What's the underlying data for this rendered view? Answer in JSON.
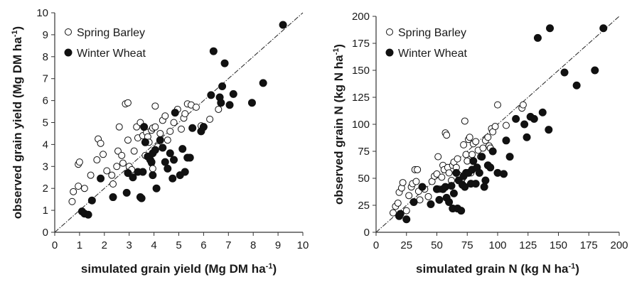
{
  "chart_data": [
    {
      "type": "scatter",
      "xlabel": "simulated grain yield (Mg DM ha",
      "xlabel_sup": "-1",
      "xlabel_end": ")",
      "ylabel": "observed grain yield (Mg DM ha",
      "ylabel_sup": "-1",
      "ylabel_end": ")",
      "xlim": [
        0,
        10
      ],
      "ylim": [
        0,
        10
      ],
      "xticks": [
        0,
        1,
        2,
        3,
        4,
        5,
        6,
        7,
        8,
        9,
        10
      ],
      "yticks": [
        0,
        1,
        2,
        3,
        4,
        5,
        6,
        7,
        8,
        9,
        10
      ],
      "one_to_one_line": true,
      "grid": false,
      "legend_position": "top-left",
      "series": [
        {
          "name": "Spring Barley",
          "marker": "open-circle",
          "points": [
            [
              0.7,
              1.4
            ],
            [
              0.75,
              1.85
            ],
            [
              0.95,
              2.1
            ],
            [
              0.95,
              3.1
            ],
            [
              1.0,
              3.2
            ],
            [
              1.2,
              2.0
            ],
            [
              1.45,
              2.6
            ],
            [
              1.7,
              3.3
            ],
            [
              1.75,
              4.25
            ],
            [
              1.85,
              4.05
            ],
            [
              1.95,
              3.55
            ],
            [
              2.1,
              2.8
            ],
            [
              2.3,
              2.6
            ],
            [
              2.35,
              2.2
            ],
            [
              2.5,
              3.0
            ],
            [
              2.55,
              3.7
            ],
            [
              2.6,
              4.8
            ],
            [
              2.7,
              3.5
            ],
            [
              2.75,
              3.15
            ],
            [
              2.85,
              5.85
            ],
            [
              2.95,
              5.9
            ],
            [
              2.95,
              4.2
            ],
            [
              3.0,
              3.0
            ],
            [
              3.1,
              2.85
            ],
            [
              3.2,
              3.7
            ],
            [
              3.3,
              4.8
            ],
            [
              3.35,
              4.3
            ],
            [
              3.45,
              5.0
            ],
            [
              3.55,
              4.4
            ],
            [
              3.65,
              3.5
            ],
            [
              3.7,
              4.55
            ],
            [
              3.75,
              4.35
            ],
            [
              3.8,
              4.1
            ],
            [
              3.85,
              3.3
            ],
            [
              3.9,
              3.15
            ],
            [
              3.9,
              4.65
            ],
            [
              3.95,
              4.75
            ],
            [
              3.95,
              2.9
            ],
            [
              4.05,
              4.8
            ],
            [
              4.05,
              5.75
            ],
            [
              4.15,
              3.9
            ],
            [
              4.25,
              4.5
            ],
            [
              4.35,
              5.1
            ],
            [
              4.45,
              5.3
            ],
            [
              4.55,
              4.2
            ],
            [
              4.65,
              4.6
            ],
            [
              4.8,
              5.0
            ],
            [
              4.95,
              5.6
            ],
            [
              5.1,
              4.7
            ],
            [
              5.2,
              5.2
            ],
            [
              5.25,
              5.4
            ],
            [
              5.35,
              5.85
            ],
            [
              5.5,
              5.8
            ],
            [
              5.7,
              5.7
            ],
            [
              5.9,
              4.85
            ],
            [
              6.25,
              5.15
            ],
            [
              6.6,
              5.6
            ]
          ]
        },
        {
          "name": "Winter Wheat",
          "marker": "filled-circle",
          "points": [
            [
              1.1,
              0.95
            ],
            [
              1.2,
              0.85
            ],
            [
              1.35,
              0.8
            ],
            [
              1.5,
              1.45
            ],
            [
              1.85,
              2.45
            ],
            [
              2.35,
              1.6
            ],
            [
              2.9,
              1.8
            ],
            [
              2.95,
              2.7
            ],
            [
              3.15,
              2.5
            ],
            [
              3.35,
              2.75
            ],
            [
              3.45,
              1.6
            ],
            [
              3.5,
              1.55
            ],
            [
              3.55,
              2.75
            ],
            [
              3.6,
              4.8
            ],
            [
              3.65,
              4.1
            ],
            [
              3.75,
              3.45
            ],
            [
              3.85,
              3.3
            ],
            [
              3.9,
              3.2
            ],
            [
              3.95,
              2.6
            ],
            [
              3.95,
              3.6
            ],
            [
              4.05,
              3.75
            ],
            [
              4.1,
              2.0
            ],
            [
              4.25,
              4.2
            ],
            [
              4.35,
              3.85
            ],
            [
              4.45,
              3.2
            ],
            [
              4.55,
              2.9
            ],
            [
              4.65,
              3.6
            ],
            [
              4.75,
              2.45
            ],
            [
              4.8,
              3.3
            ],
            [
              4.85,
              5.45
            ],
            [
              5.05,
              2.6
            ],
            [
              5.15,
              3.8
            ],
            [
              5.25,
              2.75
            ],
            [
              5.35,
              3.4
            ],
            [
              5.45,
              3.4
            ],
            [
              5.55,
              4.75
            ],
            [
              5.9,
              4.6
            ],
            [
              6.0,
              4.8
            ],
            [
              6.3,
              6.25
            ],
            [
              6.4,
              8.25
            ],
            [
              6.65,
              6.15
            ],
            [
              6.7,
              5.9
            ],
            [
              6.75,
              6.65
            ],
            [
              6.85,
              7.7
            ],
            [
              7.05,
              5.8
            ],
            [
              7.2,
              6.3
            ],
            [
              7.95,
              5.9
            ],
            [
              8.4,
              6.8
            ],
            [
              9.2,
              9.45
            ]
          ]
        }
      ]
    },
    {
      "type": "scatter",
      "xlabel": "simulated grain N (kg N ha",
      "xlabel_sup": "-1",
      "xlabel_end": ")",
      "ylabel": "observed grain N (kg N ha",
      "ylabel_sup": "-1",
      "ylabel_end": ")",
      "xlim": [
        0,
        200
      ],
      "ylim": [
        0,
        200
      ],
      "xticks": [
        0,
        25,
        50,
        75,
        100,
        125,
        150,
        175,
        200
      ],
      "yticks": [
        0,
        25,
        50,
        75,
        100,
        125,
        150,
        175,
        200
      ],
      "one_to_one_line": true,
      "grid": false,
      "legend_position": "top-left",
      "series": [
        {
          "name": "Spring Barley",
          "marker": "open-circle",
          "points": [
            [
              14,
              18
            ],
            [
              16,
              24
            ],
            [
              18,
              27
            ],
            [
              19,
              37
            ],
            [
              21,
              41
            ],
            [
              22,
              46
            ],
            [
              25,
              20
            ],
            [
              27,
              34
            ],
            [
              29,
              42
            ],
            [
              30,
              45
            ],
            [
              32,
              58
            ],
            [
              33,
              47
            ],
            [
              34,
              58
            ],
            [
              35,
              38
            ],
            [
              36,
              30
            ],
            [
              38,
              42
            ],
            [
              40,
              40
            ],
            [
              43,
              33
            ],
            [
              45,
              26
            ],
            [
              46,
              47
            ],
            [
              48,
              52
            ],
            [
              50,
              54
            ],
            [
              51,
              70
            ],
            [
              52,
              40
            ],
            [
              54,
              51
            ],
            [
              55,
              62
            ],
            [
              56,
              58
            ],
            [
              57,
              92
            ],
            [
              58,
              90
            ],
            [
              59,
              60
            ],
            [
              60,
              55
            ],
            [
              62,
              48
            ],
            [
              63,
              62
            ],
            [
              64,
              65
            ],
            [
              66,
              60
            ],
            [
              67,
              68
            ],
            [
              68,
              53
            ],
            [
              70,
              47
            ],
            [
              71,
              50
            ],
            [
              72,
              81
            ],
            [
              73,
              103
            ],
            [
              74,
              72
            ],
            [
              75,
              66
            ],
            [
              76,
              86
            ],
            [
              77,
              88
            ],
            [
              78,
              55
            ],
            [
              79,
              72
            ],
            [
              80,
              82
            ],
            [
              82,
              84
            ],
            [
              84,
              76
            ],
            [
              86,
              70
            ],
            [
              88,
              78
            ],
            [
              90,
              85
            ],
            [
              92,
              88
            ],
            [
              93,
              80
            ],
            [
              94,
              78
            ],
            [
              95,
              96
            ],
            [
              96,
              93
            ],
            [
              98,
              98
            ],
            [
              100,
              118
            ],
            [
              107,
              99
            ],
            [
              120,
              115
            ],
            [
              121,
              118
            ],
            [
              122,
              100
            ]
          ]
        },
        {
          "name": "Winter Wheat",
          "marker": "filled-circle",
          "points": [
            [
              19,
              15
            ],
            [
              20,
              17
            ],
            [
              25,
              12
            ],
            [
              31,
              28
            ],
            [
              38,
              42
            ],
            [
              45,
              26
            ],
            [
              50,
              40
            ],
            [
              52,
              30
            ],
            [
              55,
              40
            ],
            [
              57,
              42
            ],
            [
              58,
              32
            ],
            [
              60,
              28
            ],
            [
              62,
              43
            ],
            [
              63,
              22
            ],
            [
              64,
              36
            ],
            [
              66,
              55
            ],
            [
              67,
              22
            ],
            [
              68,
              48
            ],
            [
              70,
              20
            ],
            [
              71,
              44
            ],
            [
              72,
              52
            ],
            [
              73,
              42
            ],
            [
              74,
              55
            ],
            [
              76,
              55
            ],
            [
              78,
              45
            ],
            [
              79,
              58
            ],
            [
              80,
              66
            ],
            [
              82,
              45
            ],
            [
              83,
              60
            ],
            [
              85,
              55
            ],
            [
              87,
              70
            ],
            [
              89,
              42
            ],
            [
              90,
              48
            ],
            [
              92,
              62
            ],
            [
              94,
              60
            ],
            [
              96,
              75
            ],
            [
              100,
              55
            ],
            [
              105,
              54
            ],
            [
              107,
              85
            ],
            [
              110,
              70
            ],
            [
              115,
              105
            ],
            [
              122,
              100
            ],
            [
              124,
              88
            ],
            [
              127,
              107
            ],
            [
              130,
              105
            ],
            [
              133,
              180
            ],
            [
              137,
              111
            ],
            [
              142,
              95
            ],
            [
              143,
              189
            ],
            [
              155,
              148
            ],
            [
              165,
              136
            ],
            [
              180,
              150
            ],
            [
              187,
              189
            ]
          ]
        }
      ]
    }
  ]
}
